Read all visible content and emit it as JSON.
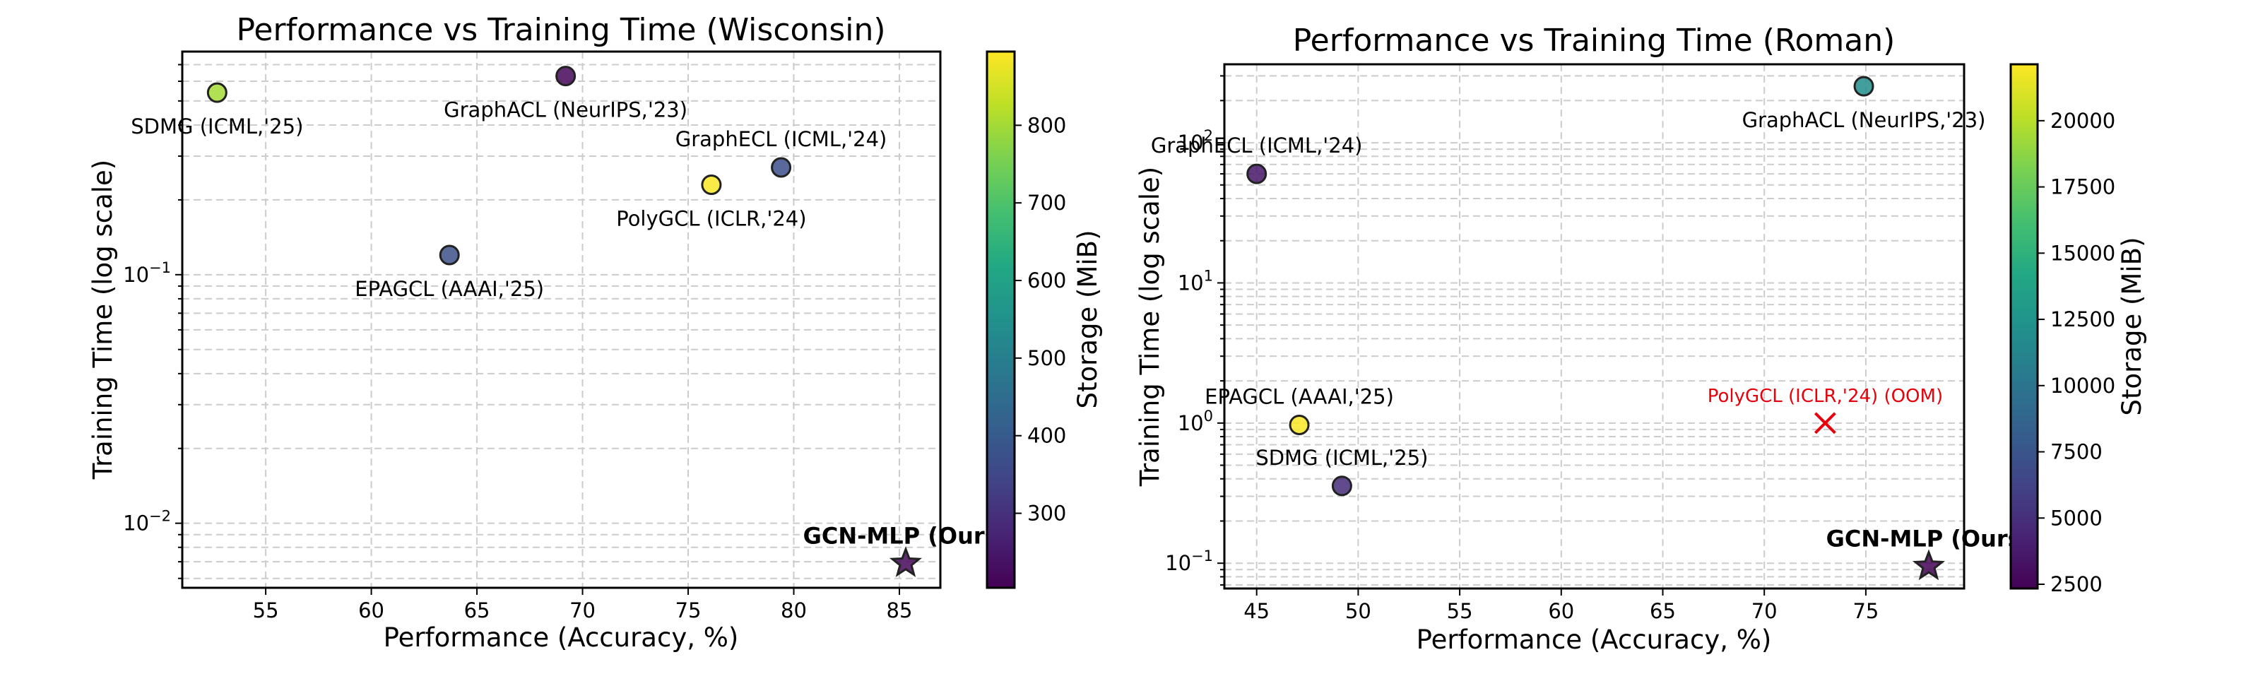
{
  "chart_data": [
    {
      "type": "scatter",
      "title": "Performance vs Training Time (Wisconsin)",
      "xlabel": "Performance (Accuracy, %)",
      "ylabel": "Training Time (log scale)",
      "yscale": "log",
      "xlim": [
        51.05,
        86.94
      ],
      "ylim": [
        0.0055,
        0.79
      ],
      "xticks": [
        55,
        60,
        65,
        70,
        75,
        80,
        85
      ],
      "xtick_labels": [
        "55",
        "60",
        "65",
        "70",
        "75",
        "80",
        "85"
      ],
      "yticks_major": [
        0.01,
        0.1
      ],
      "ytick_labels": [
        {
          "base": "10",
          "exp": "−2"
        },
        {
          "base": "10",
          "exp": "−1"
        }
      ],
      "grid": true,
      "colorbar": {
        "label": "Storage (MiB)",
        "colormap": "viridis",
        "range": [
          204,
          895
        ],
        "ticks": [
          300,
          400,
          500,
          600,
          700,
          800
        ],
        "tick_labels": [
          "300",
          "400",
          "500",
          "600",
          "700",
          "800"
        ]
      },
      "points": [
        {
          "label": "SDMG (ICML,'25)",
          "x": 52.7,
          "y": 0.54,
          "storage": 800,
          "marker": "circle",
          "label_pos": "below"
        },
        {
          "label": "GraphACL (NeurIPS,'23)",
          "x": 69.2,
          "y": 0.63,
          "storage": 215,
          "marker": "circle",
          "label_pos": "below"
        },
        {
          "label": "GraphECL (ICML,'24)",
          "x": 79.4,
          "y": 0.27,
          "storage": 370,
          "marker": "circle",
          "label_pos": "above"
        },
        {
          "label": "PolyGCL (ICLR,'24)",
          "x": 76.1,
          "y": 0.23,
          "storage": 890,
          "marker": "circle",
          "label_pos": "below"
        },
        {
          "label": "EPAGCL (AAAI,'25)",
          "x": 63.7,
          "y": 0.12,
          "storage": 375,
          "marker": "circle",
          "label_pos": "below"
        },
        {
          "label": "GCN-MLP (Ours)",
          "x": 85.3,
          "y": 0.0069,
          "storage": 215,
          "marker": "star",
          "label_pos": "above",
          "bold": true
        }
      ]
    },
    {
      "type": "scatter",
      "title": "Performance vs Training Time (Roman)",
      "xlabel": "Performance (Accuracy, %)",
      "ylabel": "Training Time (log scale)",
      "yscale": "log",
      "xlim": [
        43.41,
        79.84
      ],
      "ylim": [
        0.066,
        363
      ],
      "xticks": [
        45,
        50,
        55,
        60,
        65,
        70,
        75
      ],
      "xtick_labels": [
        "45",
        "50",
        "55",
        "60",
        "65",
        "70",
        "75"
      ],
      "yticks_major": [
        0.1,
        1,
        10,
        100
      ],
      "ytick_labels": [
        {
          "base": "10",
          "exp": "−1"
        },
        {
          "base": "10",
          "exp": "0"
        },
        {
          "base": "10",
          "exp": "1"
        },
        {
          "base": "10",
          "exp": "2"
        }
      ],
      "grid": true,
      "colorbar": {
        "label": "Storage (MiB)",
        "colormap": "viridis",
        "range": [
          2340,
          22130
        ],
        "ticks": [
          2500,
          5000,
          7500,
          10000,
          12500,
          15000,
          17500,
          20000
        ],
        "tick_labels": [
          "2500",
          "5000",
          "7500",
          "10000",
          "12500",
          "15000",
          "17500",
          "20000"
        ]
      },
      "points": [
        {
          "label": "GraphACL (NeurIPS,'23)",
          "x": 74.9,
          "y": 253,
          "storage": 12000,
          "marker": "circle",
          "label_pos": "below"
        },
        {
          "label": "GraphECL (ICML,'24)",
          "x": 45.0,
          "y": 60,
          "storage": 3500,
          "marker": "circle",
          "label_pos": "above"
        },
        {
          "label": "EPAGCL (AAAI,'25)",
          "x": 47.1,
          "y": 0.97,
          "storage": 22000,
          "marker": "circle",
          "label_pos": "above"
        },
        {
          "label": "SDMG (ICML,'25)",
          "x": 49.2,
          "y": 0.356,
          "storage": 4800,
          "marker": "circle",
          "label_pos": "above"
        },
        {
          "label": "PolyGCL (ICLR,'24) (OOM)",
          "x": 73.0,
          "y": 1.0,
          "storage": null,
          "marker": "x",
          "label_pos": "above",
          "color": "#e8000b"
        },
        {
          "label": "GCN-MLP (Ours)",
          "x": 78.1,
          "y": 0.095,
          "storage": 2400,
          "marker": "star",
          "label_pos": "above",
          "bold": true
        }
      ]
    }
  ]
}
